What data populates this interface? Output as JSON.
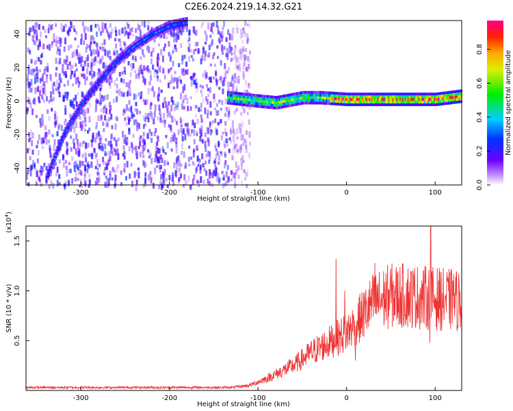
{
  "title": "C2E6.2024.219.14.32.G21",
  "chart_data": [
    {
      "type": "heatmap",
      "xlabel": "Height of straight line (km)",
      "ylabel": "Frequency (Hz)",
      "xlim": [
        -362,
        130
      ],
      "ylim": [
        -50,
        48
      ],
      "xticks": [
        -300,
        -200,
        -100,
        0,
        100
      ],
      "yticks": [
        -40,
        -20,
        0,
        20,
        40
      ],
      "colorbar": {
        "label": "Normalized spectral amplitude",
        "range": [
          0,
          0.97
        ],
        "ticks": [
          0.0,
          0.2,
          0.4,
          0.6,
          0.8
        ]
      },
      "ridges": [
        {
          "points": [
            [
              -340,
              -46
            ],
            [
              -320,
              -20
            ],
            [
              -300,
              -2
            ],
            [
              -280,
              12
            ],
            [
              -260,
              24
            ],
            [
              -240,
              33
            ],
            [
              -220,
              40
            ],
            [
              -200,
              45
            ],
            [
              -180,
              47
            ]
          ],
          "amplitude": 0.32
        },
        {
          "points": [
            [
              -135,
              2
            ],
            [
              -100,
              0
            ],
            [
              -80,
              -1
            ],
            [
              -50,
              2
            ],
            [
              -30,
              2
            ],
            [
              0,
              1
            ],
            [
              50,
              1
            ],
            [
              100,
              1
            ],
            [
              130,
              3
            ]
          ],
          "amplitude": 0.9
        }
      ],
      "noise_region_x": [
        -362,
        -130
      ]
    },
    {
      "type": "line",
      "xlabel": "Height of straight line (km)",
      "ylabel": "SNR (10 * v/v)",
      "yscale_label": "(x10",
      "yscale_exp": "4",
      "yscale_close": ")",
      "xlim": [
        -362,
        130
      ],
      "ylim": [
        0,
        1.65
      ],
      "xticks": [
        -300,
        -200,
        -100,
        0,
        100
      ],
      "yticks": [
        0.5,
        1.0,
        1.5
      ],
      "ytick_labels": [
        "0.5",
        "1.0",
        "1.5"
      ],
      "series_color": "#ee3333",
      "envelope": [
        [
          -362,
          0.03
        ],
        [
          -130,
          0.03
        ],
        [
          -110,
          0.05
        ],
        [
          -90,
          0.12
        ],
        [
          -60,
          0.25
        ],
        [
          -40,
          0.38
        ],
        [
          -20,
          0.48
        ],
        [
          0,
          0.58
        ],
        [
          15,
          0.72
        ],
        [
          30,
          0.88
        ],
        [
          50,
          0.95
        ],
        [
          70,
          0.95
        ],
        [
          100,
          0.92
        ],
        [
          130,
          0.9
        ]
      ],
      "spikes": [
        [
          -12,
          1.32
        ],
        [
          -2,
          1.0
        ],
        [
          10,
          0.3
        ],
        [
          32,
          1.28
        ],
        [
          95,
          1.65
        ],
        [
          94,
          0.48
        ],
        [
          120,
          1.1
        ]
      ]
    }
  ]
}
